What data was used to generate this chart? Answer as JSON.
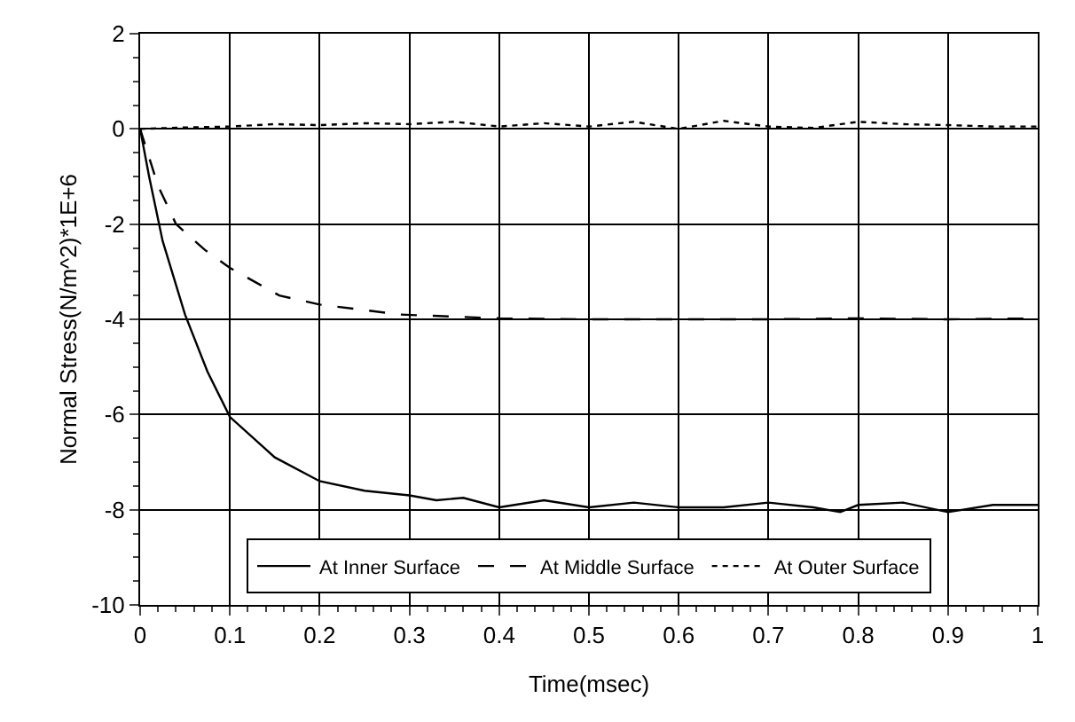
{
  "chart_data": {
    "type": "line",
    "xlabel": "Time(msec)",
    "ylabel": "Normal Stress(N/m^2)*1E+6",
    "xlim": [
      0,
      1
    ],
    "xticks": [
      0,
      0.1,
      0.2,
      0.3,
      0.4,
      0.5,
      0.6,
      0.7,
      0.8,
      0.9,
      1
    ],
    "ylim": [
      -10,
      2
    ],
    "yticks": [
      -10,
      -8,
      -6,
      -4,
      -2,
      0,
      2
    ],
    "grid": true,
    "legend": "bottom",
    "marker": "none",
    "series": [
      {
        "name": "At Inner Surface",
        "color": "#000000",
        "line_style": "solid",
        "x": [
          0,
          0.005,
          0.01,
          0.025,
          0.05,
          0.075,
          0.1,
          0.15,
          0.2,
          0.25,
          0.3,
          0.33,
          0.36,
          0.4,
          0.45,
          0.5,
          0.55,
          0.6,
          0.65,
          0.7,
          0.75,
          0.78,
          0.8,
          0.85,
          0.9,
          0.95,
          1
        ],
        "values": [
          0,
          -0.5,
          -1.0,
          -2.35,
          -3.9,
          -5.1,
          -6.05,
          -6.9,
          -7.4,
          -7.6,
          -7.7,
          -7.8,
          -7.75,
          -7.95,
          -7.8,
          -7.95,
          -7.85,
          -7.95,
          -7.95,
          -7.85,
          -7.95,
          -8.05,
          -7.9,
          -7.85,
          -8.05,
          -7.9,
          -7.9
        ]
      },
      {
        "name": "At Middle Surface",
        "color": "#000000",
        "line_style": "dashed",
        "x": [
          0,
          0.02,
          0.04,
          0.072,
          0.1,
          0.155,
          0.2,
          0.29,
          0.4,
          0.5,
          0.6,
          0.7,
          0.8,
          0.9,
          1
        ],
        "values": [
          0,
          -1.2,
          -2.0,
          -2.54,
          -2.92,
          -3.5,
          -3.69,
          -3.9,
          -3.98,
          -4,
          -4,
          -4,
          -3.98,
          -4,
          -3.98
        ]
      },
      {
        "name": "At Outer Surface",
        "color": "#000000",
        "line_style": "dotted",
        "x": [
          0,
          0.05,
          0.1,
          0.15,
          0.2,
          0.25,
          0.3,
          0.35,
          0.4,
          0.45,
          0.5,
          0.55,
          0.6,
          0.65,
          0.7,
          0.75,
          0.8,
          0.85,
          0.9,
          0.95,
          1
        ],
        "values": [
          0,
          0.03,
          0.05,
          0.1,
          0.08,
          0.12,
          0.1,
          0.15,
          0.05,
          0.12,
          0.05,
          0.15,
          0,
          0.17,
          0.05,
          0.02,
          0.15,
          0.1,
          0.08,
          0.05,
          0.05
        ]
      }
    ]
  }
}
